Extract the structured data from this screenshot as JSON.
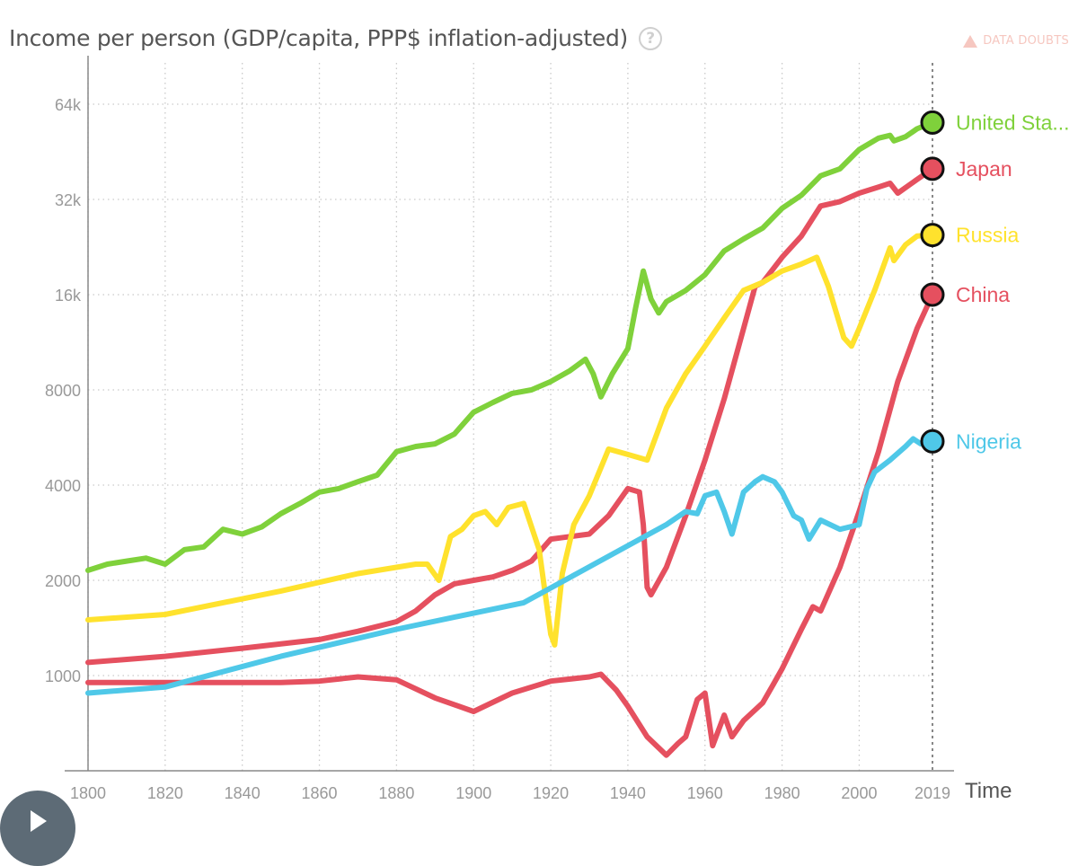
{
  "chart_data": {
    "type": "line",
    "title": "Income per person (GDP/capita, PPP$ inflation-adjusted)",
    "xlabel": "Time",
    "ylabel": "Income per person (GDP/capita, PPP$ inflation-adjusted)",
    "y_scale": "log",
    "xlim": [
      1800,
      2021
    ],
    "ylim": [
      500,
      100000
    ],
    "x_ticks": [
      1800,
      1820,
      1840,
      1860,
      1880,
      1900,
      1920,
      1940,
      1960,
      1980,
      2000,
      2019
    ],
    "x_tick_labels": [
      "1800",
      "1820",
      "1840",
      "1860",
      "1880",
      "1900",
      "1920",
      "1940",
      "1960",
      "1980",
      "2000",
      "2019"
    ],
    "y_ticks": [
      1000,
      2000,
      4000,
      8000,
      16000,
      32000,
      64000
    ],
    "y_tick_labels": [
      "1000",
      "2000",
      "4000",
      "8000",
      "16k",
      "32k",
      "64k"
    ],
    "grid": true,
    "current_year_marker": 2019,
    "series": [
      {
        "name": "United Sta...",
        "color": "#7fd13b",
        "x": [
          1800,
          1805,
          1810,
          1815,
          1820,
          1825,
          1830,
          1835,
          1840,
          1845,
          1850,
          1855,
          1860,
          1865,
          1870,
          1875,
          1880,
          1885,
          1890,
          1895,
          1900,
          1905,
          1910,
          1915,
          1920,
          1925,
          1929,
          1931,
          1933,
          1936,
          1940,
          1942,
          1944,
          1946,
          1948,
          1950,
          1955,
          1960,
          1965,
          1970,
          1975,
          1980,
          1985,
          1990,
          1995,
          2000,
          2005,
          2008,
          2009,
          2012,
          2015,
          2019
        ],
        "values": [
          2150,
          2250,
          2300,
          2350,
          2250,
          2500,
          2550,
          2900,
          2800,
          2950,
          3250,
          3500,
          3800,
          3900,
          4100,
          4300,
          5100,
          5300,
          5400,
          5800,
          6800,
          7300,
          7800,
          8000,
          8500,
          9200,
          10000,
          9000,
          7600,
          9000,
          10800,
          14500,
          19000,
          15500,
          14000,
          15200,
          16500,
          18500,
          22000,
          24000,
          26000,
          30000,
          33000,
          38000,
          40000,
          46000,
          50000,
          51000,
          49000,
          50500,
          53500,
          56000
        ]
      },
      {
        "name": "Japan",
        "color": "#e5505f",
        "x": [
          1800,
          1820,
          1840,
          1860,
          1870,
          1880,
          1885,
          1890,
          1895,
          1900,
          1905,
          1910,
          1915,
          1920,
          1925,
          1930,
          1935,
          1940,
          1943,
          1944,
          1945,
          1946,
          1950,
          1955,
          1960,
          1965,
          1970,
          1973,
          1975,
          1980,
          1985,
          1990,
          1995,
          2000,
          2005,
          2008,
          2010,
          2015,
          2019
        ],
        "values": [
          1100,
          1150,
          1220,
          1300,
          1380,
          1480,
          1600,
          1800,
          1950,
          2000,
          2050,
          2150,
          2300,
          2700,
          2750,
          2800,
          3200,
          3900,
          3800,
          3000,
          1900,
          1800,
          2200,
          3200,
          4800,
          7500,
          12500,
          17000,
          17500,
          21000,
          24500,
          30500,
          31500,
          33500,
          35000,
          36000,
          33500,
          37000,
          40000
        ]
      },
      {
        "name": "Russia",
        "color": "#ffe22d",
        "x": [
          1800,
          1820,
          1850,
          1870,
          1885,
          1888,
          1891,
          1894,
          1897,
          1900,
          1903,
          1906,
          1909,
          1913,
          1917,
          1920,
          1921,
          1923,
          1926,
          1930,
          1935,
          1940,
          1945,
          1950,
          1955,
          1960,
          1965,
          1970,
          1975,
          1980,
          1985,
          1989,
          1992,
          1996,
          1998,
          2000,
          2004,
          2008,
          2009,
          2012,
          2015,
          2019
        ],
        "values": [
          1500,
          1560,
          1850,
          2100,
          2250,
          2250,
          2000,
          2750,
          2900,
          3200,
          3300,
          3000,
          3400,
          3500,
          2500,
          1350,
          1250,
          2100,
          3000,
          3700,
          5200,
          5000,
          4800,
          7000,
          9000,
          11000,
          13500,
          16500,
          17500,
          19000,
          20000,
          21000,
          17000,
          11700,
          11000,
          12500,
          16500,
          22500,
          20500,
          23000,
          24500,
          24700
        ]
      },
      {
        "name": "China",
        "color": "#e5505f",
        "x": [
          1800,
          1820,
          1840,
          1850,
          1860,
          1870,
          1880,
          1890,
          1900,
          1910,
          1920,
          1930,
          1933,
          1937,
          1940,
          1945,
          1950,
          1953,
          1955,
          1958,
          1960,
          1962,
          1965,
          1967,
          1970,
          1975,
          1978,
          1980,
          1985,
          1988,
          1990,
          1995,
          2000,
          2005,
          2010,
          2015,
          2019
        ],
        "values": [
          950,
          950,
          950,
          950,
          960,
          990,
          970,
          850,
          770,
          880,
          960,
          990,
          1010,
          900,
          800,
          640,
          560,
          610,
          640,
          840,
          880,
          600,
          750,
          640,
          720,
          820,
          950,
          1050,
          1400,
          1650,
          1600,
          2200,
          3300,
          5100,
          8500,
          12500,
          16000
        ]
      },
      {
        "name": "Nigeria",
        "color": "#4fc8e8",
        "x": [
          1800,
          1820,
          1850,
          1880,
          1913,
          1950,
          1955,
          1958,
          1960,
          1963,
          1965,
          1967,
          1970,
          1973,
          1975,
          1978,
          1980,
          1983,
          1985,
          1987,
          1990,
          1995,
          2000,
          2002,
          2004,
          2008,
          2012,
          2014,
          2016,
          2019
        ],
        "values": [
          880,
          920,
          1150,
          1400,
          1700,
          3000,
          3300,
          3250,
          3700,
          3800,
          3300,
          2800,
          3800,
          4100,
          4250,
          4100,
          3800,
          3200,
          3100,
          2700,
          3100,
          2900,
          3000,
          3900,
          4400,
          4800,
          5300,
          5600,
          5400,
          5500
        ]
      }
    ]
  },
  "ui": {
    "data_doubts_label": "DATA DOUBTS",
    "help_glyph": "?"
  }
}
